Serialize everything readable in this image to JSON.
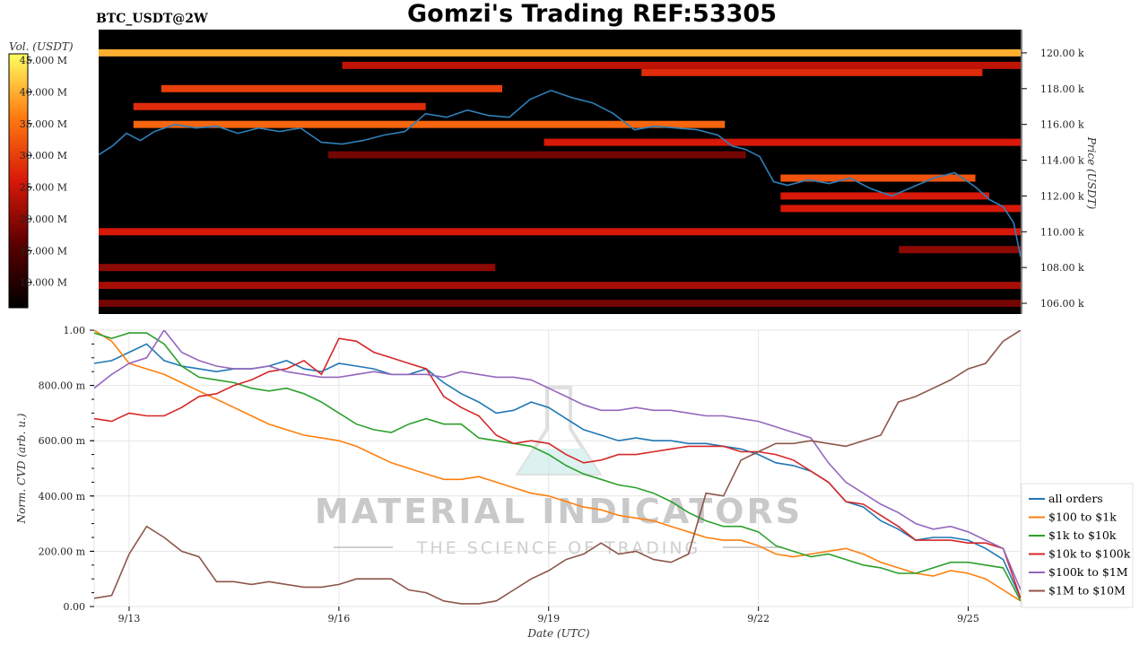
{
  "header": {
    "title": "Gomzi's Trading REF:53305",
    "pair": "BTC_USDT@2W"
  },
  "watermark": {
    "brand": "MATERIAL INDICATORS",
    "tagline": "THE SCIENCE OF TRADING"
  },
  "colors": {
    "heatmap_low": "#000000",
    "heatmap_mid": "#e0200a",
    "heatmap_high": "#ffff40",
    "price_line": "#2f7fb8"
  },
  "chart_data": [
    {
      "type": "heatmap",
      "name": "orderbook-heatmap",
      "colorbar": {
        "label": "Vol. (USDT)",
        "ticks": [
          "45.000 M",
          "40.000 M",
          "35.000 M",
          "30.000 M",
          "25.000 M",
          "20.000 M",
          "15.000 M",
          "10.000 M"
        ],
        "tick_values": [
          45,
          40,
          35,
          30,
          25,
          20,
          15,
          10
        ],
        "range": [
          6,
          46
        ]
      },
      "y_axis": {
        "label": "Price (USDT)",
        "ticks": [
          "120.00 k",
          "118.00 k",
          "116.00 k",
          "114.00 k",
          "112.00 k",
          "110.00 k",
          "108.00 k",
          "106.00 k"
        ],
        "tick_values": [
          120,
          118,
          116,
          114,
          112,
          110,
          108,
          106
        ],
        "range": [
          105.4,
          121.3
        ]
      },
      "x_range": [
        12.5,
        25.75
      ],
      "bands": [
        {
          "price": 120.0,
          "start": 12.5,
          "end": 25.75,
          "intensity": 0.85
        },
        {
          "price": 119.3,
          "start": 16.0,
          "end": 25.75,
          "intensity": 0.45
        },
        {
          "price": 118.9,
          "start": 20.3,
          "end": 25.2,
          "intensity": 0.55
        },
        {
          "price": 118.0,
          "start": 13.4,
          "end": 18.3,
          "intensity": 0.6
        },
        {
          "price": 117.0,
          "start": 13.0,
          "end": 17.2,
          "intensity": 0.55
        },
        {
          "price": 116.0,
          "start": 13.0,
          "end": 21.5,
          "intensity": 0.7
        },
        {
          "price": 115.0,
          "start": 18.9,
          "end": 25.75,
          "intensity": 0.5
        },
        {
          "price": 114.3,
          "start": 15.8,
          "end": 21.8,
          "intensity": 0.3
        },
        {
          "price": 113.0,
          "start": 22.3,
          "end": 25.1,
          "intensity": 0.65
        },
        {
          "price": 112.0,
          "start": 22.3,
          "end": 25.3,
          "intensity": 0.5
        },
        {
          "price": 111.3,
          "start": 22.3,
          "end": 25.75,
          "intensity": 0.5
        },
        {
          "price": 110.0,
          "start": 12.5,
          "end": 25.75,
          "intensity": 0.5
        },
        {
          "price": 109.0,
          "start": 24.0,
          "end": 25.75,
          "intensity": 0.35
        },
        {
          "price": 108.0,
          "start": 12.5,
          "end": 18.2,
          "intensity": 0.35
        },
        {
          "price": 107.0,
          "start": 12.5,
          "end": 25.75,
          "intensity": 0.4
        },
        {
          "price": 106.0,
          "start": 12.5,
          "end": 25.75,
          "intensity": 0.3
        }
      ],
      "price_series": {
        "name": "price",
        "x": [
          12.5,
          12.7,
          12.9,
          13.1,
          13.3,
          13.6,
          13.9,
          14.2,
          14.5,
          14.8,
          15.1,
          15.4,
          15.7,
          16.0,
          16.3,
          16.6,
          16.9,
          17.2,
          17.5,
          17.8,
          18.1,
          18.4,
          18.7,
          19.0,
          19.3,
          19.6,
          19.9,
          20.2,
          20.5,
          20.8,
          21.1,
          21.4,
          21.6,
          21.8,
          22.0,
          22.2,
          22.4,
          22.7,
          23.0,
          23.3,
          23.6,
          23.9,
          24.2,
          24.5,
          24.8,
          25.1,
          25.3,
          25.5,
          25.65,
          25.75
        ],
        "y": [
          114.3,
          114.8,
          115.5,
          115.1,
          115.6,
          116.0,
          115.8,
          115.9,
          115.5,
          115.8,
          115.6,
          115.8,
          115.0,
          114.9,
          115.1,
          115.4,
          115.6,
          116.6,
          116.4,
          116.8,
          116.5,
          116.4,
          117.4,
          117.9,
          117.5,
          117.2,
          116.6,
          115.7,
          115.9,
          115.8,
          115.7,
          115.4,
          114.8,
          114.6,
          114.2,
          112.8,
          112.6,
          112.9,
          112.7,
          113.0,
          112.4,
          112.0,
          112.5,
          113.0,
          113.3,
          112.5,
          111.8,
          111.4,
          110.5,
          108.6
        ]
      }
    },
    {
      "type": "line",
      "name": "normalized-cvd",
      "x_axis": {
        "label": "Date (UTC)",
        "ticks": [
          "9/13",
          "9/16",
          "9/19",
          "9/22",
          "9/25"
        ],
        "tick_values": [
          13,
          16,
          19,
          22,
          25
        ],
        "range": [
          12.5,
          25.75
        ]
      },
      "y_axis": {
        "label": "Norm. CVD (arb. u.)",
        "ticks": [
          "1.00",
          "800.00 m",
          "600.00 m",
          "400.00 m",
          "200.00 m",
          "0.00"
        ],
        "tick_values": [
          1.0,
          0.8,
          0.6,
          0.4,
          0.2,
          0.0
        ],
        "range": [
          0,
          1
        ]
      },
      "grid": true,
      "legend": "right",
      "x": [
        12.5,
        12.75,
        13.0,
        13.25,
        13.5,
        13.75,
        14.0,
        14.25,
        14.5,
        14.75,
        15.0,
        15.25,
        15.5,
        15.75,
        16.0,
        16.25,
        16.5,
        16.75,
        17.0,
        17.25,
        17.5,
        17.75,
        18.0,
        18.25,
        18.5,
        18.75,
        19.0,
        19.25,
        19.5,
        19.75,
        20.0,
        20.25,
        20.5,
        20.75,
        21.0,
        21.25,
        21.5,
        21.75,
        22.0,
        22.25,
        22.5,
        22.75,
        23.0,
        23.25,
        23.5,
        23.75,
        24.0,
        24.25,
        24.5,
        24.75,
        25.0,
        25.25,
        25.5,
        25.75
      ],
      "series": [
        {
          "name": "all orders",
          "color": "#1f77b4",
          "values": [
            0.88,
            0.89,
            0.92,
            0.95,
            0.89,
            0.87,
            0.86,
            0.85,
            0.86,
            0.86,
            0.87,
            0.89,
            0.86,
            0.85,
            0.88,
            0.87,
            0.86,
            0.84,
            0.84,
            0.86,
            0.81,
            0.77,
            0.74,
            0.7,
            0.71,
            0.74,
            0.72,
            0.68,
            0.64,
            0.62,
            0.6,
            0.61,
            0.6,
            0.6,
            0.59,
            0.59,
            0.58,
            0.57,
            0.55,
            0.52,
            0.51,
            0.49,
            0.45,
            0.38,
            0.36,
            0.31,
            0.28,
            0.24,
            0.25,
            0.25,
            0.24,
            0.21,
            0.17,
            0.03
          ]
        },
        {
          "name": "$100 to $1k",
          "color": "#ff7f0e",
          "values": [
            1.0,
            0.96,
            0.88,
            0.86,
            0.84,
            0.81,
            0.78,
            0.75,
            0.72,
            0.69,
            0.66,
            0.64,
            0.62,
            0.61,
            0.6,
            0.58,
            0.55,
            0.52,
            0.5,
            0.48,
            0.46,
            0.46,
            0.47,
            0.45,
            0.43,
            0.41,
            0.4,
            0.38,
            0.36,
            0.35,
            0.33,
            0.32,
            0.31,
            0.29,
            0.27,
            0.25,
            0.24,
            0.24,
            0.22,
            0.19,
            0.18,
            0.19,
            0.2,
            0.21,
            0.19,
            0.16,
            0.14,
            0.12,
            0.11,
            0.13,
            0.12,
            0.1,
            0.06,
            0.02
          ]
        },
        {
          "name": "$1k to $10k",
          "color": "#2ca02c",
          "values": [
            0.99,
            0.97,
            0.99,
            0.99,
            0.95,
            0.87,
            0.83,
            0.82,
            0.81,
            0.79,
            0.78,
            0.79,
            0.77,
            0.74,
            0.7,
            0.66,
            0.64,
            0.63,
            0.66,
            0.68,
            0.66,
            0.66,
            0.61,
            0.6,
            0.59,
            0.58,
            0.55,
            0.51,
            0.48,
            0.46,
            0.44,
            0.43,
            0.41,
            0.38,
            0.34,
            0.31,
            0.29,
            0.29,
            0.27,
            0.22,
            0.2,
            0.18,
            0.19,
            0.17,
            0.15,
            0.14,
            0.12,
            0.12,
            0.14,
            0.16,
            0.16,
            0.15,
            0.14,
            0.02
          ]
        },
        {
          "name": "$10k to $100k",
          "color": "#d62728",
          "values": [
            0.68,
            0.67,
            0.7,
            0.69,
            0.69,
            0.72,
            0.76,
            0.77,
            0.8,
            0.82,
            0.85,
            0.86,
            0.89,
            0.84,
            0.97,
            0.96,
            0.92,
            0.9,
            0.88,
            0.86,
            0.76,
            0.72,
            0.69,
            0.62,
            0.59,
            0.6,
            0.59,
            0.55,
            0.52,
            0.53,
            0.55,
            0.55,
            0.56,
            0.57,
            0.58,
            0.58,
            0.58,
            0.56,
            0.56,
            0.55,
            0.53,
            0.49,
            0.45,
            0.38,
            0.37,
            0.33,
            0.29,
            0.24,
            0.24,
            0.24,
            0.23,
            0.23,
            0.21,
            0.03
          ]
        },
        {
          "name": "$100k to $1M",
          "color": "#9467bd",
          "values": [
            0.79,
            0.84,
            0.88,
            0.9,
            1.0,
            0.92,
            0.89,
            0.87,
            0.86,
            0.86,
            0.87,
            0.85,
            0.84,
            0.83,
            0.83,
            0.84,
            0.85,
            0.84,
            0.84,
            0.84,
            0.83,
            0.85,
            0.84,
            0.83,
            0.83,
            0.82,
            0.79,
            0.76,
            0.73,
            0.71,
            0.71,
            0.72,
            0.71,
            0.71,
            0.7,
            0.69,
            0.69,
            0.68,
            0.67,
            0.65,
            0.63,
            0.61,
            0.52,
            0.45,
            0.41,
            0.37,
            0.34,
            0.3,
            0.28,
            0.29,
            0.27,
            0.24,
            0.21,
            0.06
          ]
        },
        {
          "name": "$1M to $10M",
          "color": "#8c564b",
          "values": [
            0.03,
            0.04,
            0.19,
            0.29,
            0.25,
            0.2,
            0.18,
            0.09,
            0.09,
            0.08,
            0.09,
            0.08,
            0.07,
            0.07,
            0.08,
            0.1,
            0.1,
            0.1,
            0.06,
            0.05,
            0.02,
            0.01,
            0.01,
            0.02,
            0.06,
            0.1,
            0.13,
            0.17,
            0.19,
            0.23,
            0.19,
            0.2,
            0.17,
            0.16,
            0.19,
            0.41,
            0.4,
            0.53,
            0.56,
            0.59,
            0.59,
            0.6,
            0.59,
            0.58,
            0.6,
            0.62,
            0.74,
            0.76,
            0.79,
            0.82,
            0.86,
            0.88,
            0.96,
            1.0
          ]
        }
      ]
    }
  ]
}
